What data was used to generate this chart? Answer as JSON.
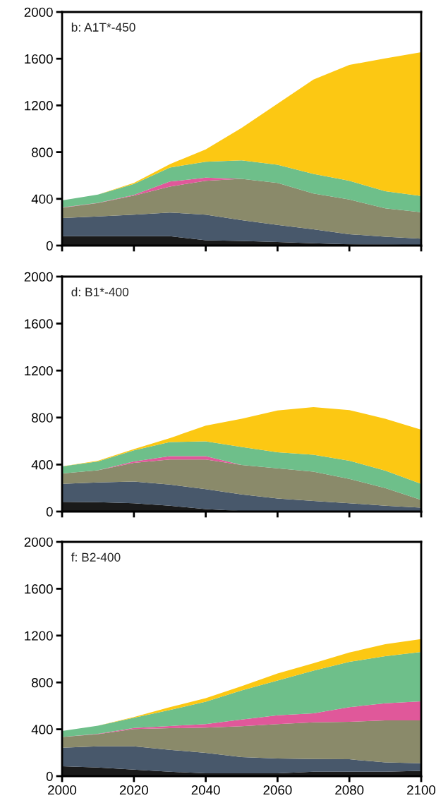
{
  "chart_data": [
    {
      "type": "area",
      "title": "b: A1T*-450",
      "stacked": true,
      "x": [
        2000,
        2010,
        2020,
        2030,
        2040,
        2050,
        2060,
        2070,
        2080,
        2090,
        2100
      ],
      "xlim": [
        2000,
        2100
      ],
      "xticks": [
        2000,
        2020,
        2040,
        2060,
        2080,
        2100
      ],
      "ylim": [
        0,
        2000
      ],
      "yticks": [
        0,
        400,
        800,
        1200,
        1600,
        2000
      ],
      "tick_labels": "y",
      "grid": false,
      "series": [
        {
          "color": "#1a1a1a",
          "values": [
            80,
            80,
            80,
            80,
            45,
            40,
            30,
            20,
            10,
            8,
            5
          ]
        },
        {
          "color": "#48586b",
          "values": [
            156,
            170,
            185,
            203,
            219,
            177,
            147,
            119,
            87,
            68,
            54
          ]
        },
        {
          "color": "#8a8a6a",
          "values": [
            87,
            114,
            162,
            222,
            291,
            354,
            359,
            307,
            297,
            243,
            227
          ]
        },
        {
          "color": "#e0589a",
          "values": [
            4,
            2,
            7,
            43,
            26,
            0,
            0,
            0,
            0,
            0,
            0
          ]
        },
        {
          "color": "#6ebf8a",
          "values": [
            60,
            71,
            93,
            120,
            137,
            159,
            156,
            168,
            161,
            146,
            139
          ]
        },
        {
          "color": "#fcc813",
          "values": [
            0,
            0,
            9,
            29,
            106,
            278,
            522,
            807,
            992,
            1138,
            1230
          ]
        }
      ]
    },
    {
      "type": "area",
      "title": "d: B1*-400",
      "stacked": true,
      "x": [
        2000,
        2010,
        2020,
        2030,
        2040,
        2050,
        2060,
        2070,
        2080,
        2090,
        2100
      ],
      "xlim": [
        2000,
        2100
      ],
      "xticks": [
        2000,
        2020,
        2040,
        2060,
        2080,
        2100
      ],
      "ylim": [
        0,
        2000
      ],
      "yticks": [
        0,
        400,
        800,
        1200,
        1600,
        2000
      ],
      "tick_labels": "y",
      "grid": false,
      "series": [
        {
          "color": "#1a1a1a",
          "values": [
            83,
            80,
            71,
            50,
            21,
            5,
            0,
            0,
            0,
            0,
            0
          ]
        },
        {
          "color": "#48586b",
          "values": [
            153,
            168,
            184,
            179,
            170,
            141,
            111,
            90,
            71,
            50,
            33
          ]
        },
        {
          "color": "#8a8a6a",
          "values": [
            89,
            103,
            160,
            214,
            252,
            250,
            257,
            250,
            207,
            150,
            66
          ]
        },
        {
          "color": "#e0589a",
          "values": [
            0,
            0,
            12,
            29,
            29,
            0,
            0,
            0,
            0,
            0,
            0
          ]
        },
        {
          "color": "#6ebf8a",
          "values": [
            59,
            76,
            94,
            120,
            125,
            154,
            137,
            143,
            154,
            149,
            137
          ]
        },
        {
          "color": "#fcc813",
          "values": [
            0,
            5,
            10,
            33,
            134,
            240,
            356,
            406,
            431,
            441,
            460
          ]
        }
      ]
    },
    {
      "type": "area",
      "title": "f: B2-400",
      "stacked": true,
      "x": [
        2000,
        2010,
        2020,
        2030,
        2040,
        2050,
        2060,
        2070,
        2080,
        2090,
        2100
      ],
      "xlim": [
        2000,
        2100
      ],
      "xticks": [
        2000,
        2020,
        2040,
        2060,
        2080,
        2100
      ],
      "ylim": [
        0,
        2000
      ],
      "yticks": [
        0,
        400,
        800,
        1200,
        1600,
        2000
      ],
      "grid": false,
      "series": [
        {
          "color": "#1a1a1a",
          "values": [
            84,
            74,
            55,
            38,
            24,
            24,
            24,
            38,
            38,
            38,
            45
          ]
        },
        {
          "color": "#48586b",
          "values": [
            158,
            180,
            199,
            187,
            175,
            139,
            127,
            108,
            106,
            79,
            65
          ]
        },
        {
          "color": "#8a8a6a",
          "values": [
            93,
            105,
            148,
            184,
            215,
            263,
            294,
            313,
            320,
            359,
            366
          ]
        },
        {
          "color": "#e0589a",
          "values": [
            0,
            2,
            9,
            19,
            31,
            57,
            74,
            77,
            125,
            146,
            163
          ]
        },
        {
          "color": "#6ebf8a",
          "values": [
            50,
            70,
            87,
            137,
            191,
            249,
            297,
            364,
            387,
            402,
            421
          ]
        },
        {
          "color": "#fcc813",
          "values": [
            0,
            0,
            7,
            24,
            29,
            36,
            60,
            64,
            79,
            103,
            110
          ]
        }
      ]
    }
  ]
}
